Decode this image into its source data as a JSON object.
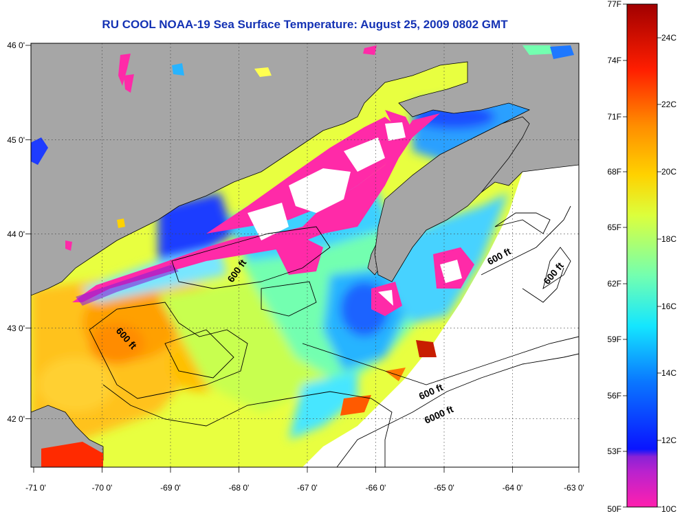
{
  "title": "RU COOL  NOAA-19  Sea Surface Temperature:  August 25, 2009 0802 GMT",
  "map": {
    "lon_range": [
      -71,
      -63
    ],
    "lat_range": [
      41.5,
      46.0
    ],
    "x_ticks": [
      "-71 0'",
      "-70 0'",
      "-69 0'",
      "-68 0'",
      "-67 0'",
      "-66 0'",
      "-65 0'",
      "-64 0'",
      "-63 0'"
    ],
    "y_ticks": [
      "46 0'",
      "45 0'",
      "44 0'",
      "43 0'",
      "42 0'"
    ],
    "grid": "dotted",
    "land_color": "#a6a6a6",
    "no_data_color": "#ffffff",
    "contour_labels": [
      "600 ft",
      "600 ft",
      "600 ft",
      "600 ft",
      "600 ft",
      "6000 ft"
    ]
  },
  "colorbar": {
    "range_f": [
      50,
      77
    ],
    "fahrenheit_labels": [
      "77F",
      "74F",
      "71F",
      "68F",
      "65F",
      "62F",
      "59F",
      "56F",
      "53F",
      "50F"
    ],
    "celsius_labels": [
      "24C",
      "22C",
      "20C",
      "18C",
      "16C",
      "14C",
      "12C",
      "10C"
    ],
    "colors": [
      "#ff1fae",
      "#8a22d6",
      "#0a14ff",
      "#0a78ff",
      "#14e6ff",
      "#73ffb0",
      "#dcff3c",
      "#ffd200",
      "#ff8c00",
      "#ff1e00",
      "#a00000"
    ]
  }
}
